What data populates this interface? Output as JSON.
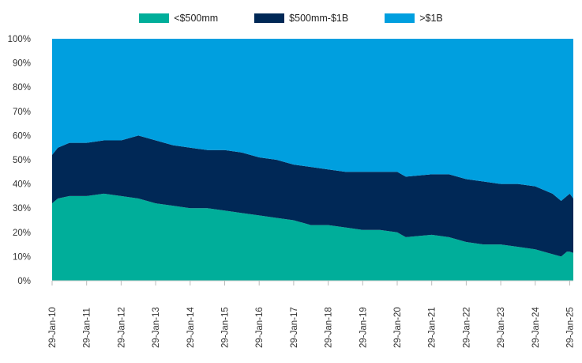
{
  "chart_data": {
    "type": "area",
    "stacked": true,
    "title": "",
    "xlabel": "",
    "ylabel": "",
    "ylim": [
      0,
      100
    ],
    "y_ticks": [
      "0%",
      "10%",
      "20%",
      "30%",
      "40%",
      "50%",
      "60%",
      "70%",
      "80%",
      "90%",
      "100%"
    ],
    "x_ticks": [
      "29-Jan-10",
      "29-Jan-11",
      "29-Jan-12",
      "29-Jan-13",
      "29-Jan-14",
      "29-Jan-15",
      "29-Jan-16",
      "29-Jan-17",
      "29-Jan-18",
      "29-Jan-19",
      "29-Jan-20",
      "29-Jan-21",
      "29-Jan-22",
      "29-Jan-23",
      "29-Jan-24",
      "29-Jan-25"
    ],
    "legend_position": "top",
    "grid": false,
    "x": [
      "2010-01",
      "2010-03",
      "2010-07",
      "2011-01",
      "2011-07",
      "2012-01",
      "2012-07",
      "2013-01",
      "2013-07",
      "2014-01",
      "2014-07",
      "2015-01",
      "2015-07",
      "2016-01",
      "2016-07",
      "2017-01",
      "2017-07",
      "2018-01",
      "2018-07",
      "2019-01",
      "2019-07",
      "2020-01",
      "2020-04",
      "2021-01",
      "2021-07",
      "2022-01",
      "2022-07",
      "2023-01",
      "2023-07",
      "2024-01",
      "2024-07",
      "2024-10",
      "2024-12",
      "2025-01",
      "2025-02"
    ],
    "series": [
      {
        "name": "<$500mm",
        "color": "#00AE9A",
        "values": [
          32,
          34,
          35,
          35,
          36,
          35,
          34,
          32,
          31,
          30,
          30,
          29,
          28,
          27,
          26,
          25,
          23,
          23,
          22,
          21,
          21,
          20,
          18,
          19,
          18,
          16,
          15,
          15,
          14,
          13,
          11,
          10,
          12,
          12,
          11.5
        ]
      },
      {
        "name": "$500mm-$1B",
        "color": "#002856",
        "values": [
          20,
          21,
          22,
          22,
          22,
          23,
          26,
          26,
          25,
          25,
          24,
          25,
          25,
          24,
          24,
          23,
          24,
          23,
          23,
          24,
          24,
          25,
          25,
          25,
          26,
          26,
          26,
          25,
          26,
          26,
          25,
          23,
          23,
          24,
          22.5
        ]
      },
      {
        "name": ">$1B",
        "color": "#009FDF",
        "values": [
          48,
          45,
          43,
          43,
          42,
          42,
          40,
          42,
          44,
          45,
          46,
          46,
          47,
          49,
          50,
          52,
          53,
          54,
          55,
          55,
          55,
          55,
          57,
          56,
          56,
          58,
          59,
          60,
          60,
          61,
          64,
          67,
          65,
          64,
          66
        ]
      }
    ]
  }
}
